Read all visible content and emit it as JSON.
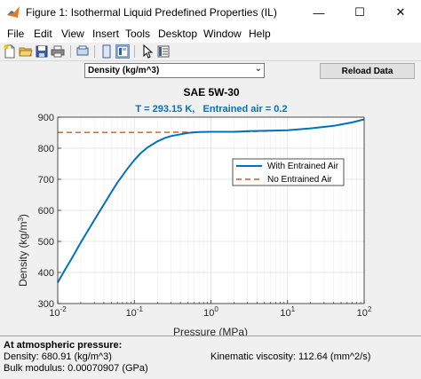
{
  "window": {
    "title": "Figure 1: Isothermal Liquid Predefined Properties (IL)",
    "minimize": "—",
    "maximize": "☐",
    "close": "✕"
  },
  "menu": [
    "File",
    "Edit",
    "View",
    "Insert",
    "Tools",
    "Desktop",
    "Window",
    "Help"
  ],
  "toolbar": {
    "icons": [
      "new-figure-icon",
      "open-file-icon",
      "save-icon",
      "print-icon",
      "link-plot-icon",
      "hide-plot-tools-icon",
      "show-plot-tools-icon",
      "edit-plot-icon",
      "property-inspector-icon"
    ]
  },
  "controls": {
    "property_select": "Density (kg/m^3)",
    "reload_label": "Reload Data"
  },
  "chart_data": {
    "type": "line",
    "title": "SAE 5W-30",
    "subtitle": "T = 293.15 K,   Entrained air = 0.2",
    "xlabel": "Pressure (MPa)",
    "ylabel": "Density (kg/m",
    "ylabel_sup": "3",
    "ylabel_end": ")",
    "xscale": "log",
    "xlim": [
      0.01,
      100
    ],
    "ylim": [
      300,
      900
    ],
    "x_ticks": [
      {
        "base": "10",
        "exp": "-2"
      },
      {
        "base": "10",
        "exp": "-1"
      },
      {
        "base": "10",
        "exp": "0"
      },
      {
        "base": "10",
        "exp": "1"
      },
      {
        "base": "10",
        "exp": "2"
      }
    ],
    "y_ticks": [
      "300",
      "400",
      "500",
      "600",
      "700",
      "800",
      "900"
    ],
    "grid": true,
    "legend_position": "right-middle",
    "series": [
      {
        "name": "With Entrained Air",
        "color": "#0072bd",
        "style": "solid",
        "x": [
          0.01,
          0.0125,
          0.015,
          0.02,
          0.025,
          0.03,
          0.04,
          0.05,
          0.06,
          0.07,
          0.08,
          0.1,
          0.12,
          0.15,
          0.2,
          0.25,
          0.3,
          0.4,
          0.5,
          0.7,
          1.0,
          1.5,
          2.0,
          2.5,
          3,
          5,
          10,
          20,
          40,
          70,
          100
        ],
        "y": [
          368,
          410,
          442,
          497,
          536,
          569,
          619,
          658,
          689,
          712,
          732,
          762,
          783,
          803,
          822,
          833,
          839,
          845,
          849,
          852,
          853,
          853,
          853,
          854,
          855,
          856,
          858,
          864,
          872,
          883,
          893
        ]
      },
      {
        "name": "No Entrained Air",
        "color": "#d95319",
        "style": "dashed",
        "x": [
          0.01,
          0.1,
          1,
          2.5,
          5,
          10,
          20,
          40,
          70,
          100
        ],
        "y": [
          851,
          851,
          852,
          853,
          855,
          858,
          864,
          872,
          883,
          893
        ]
      }
    ]
  },
  "info": {
    "heading": "At atmospheric pressure:",
    "density": "Density: 680.91 (kg/m^3)",
    "bulk_modulus": "Bulk modulus: 0.00070907 (GPa)",
    "viscosity": "Kinematic viscosity: 112.64 (mm^2/s)"
  }
}
